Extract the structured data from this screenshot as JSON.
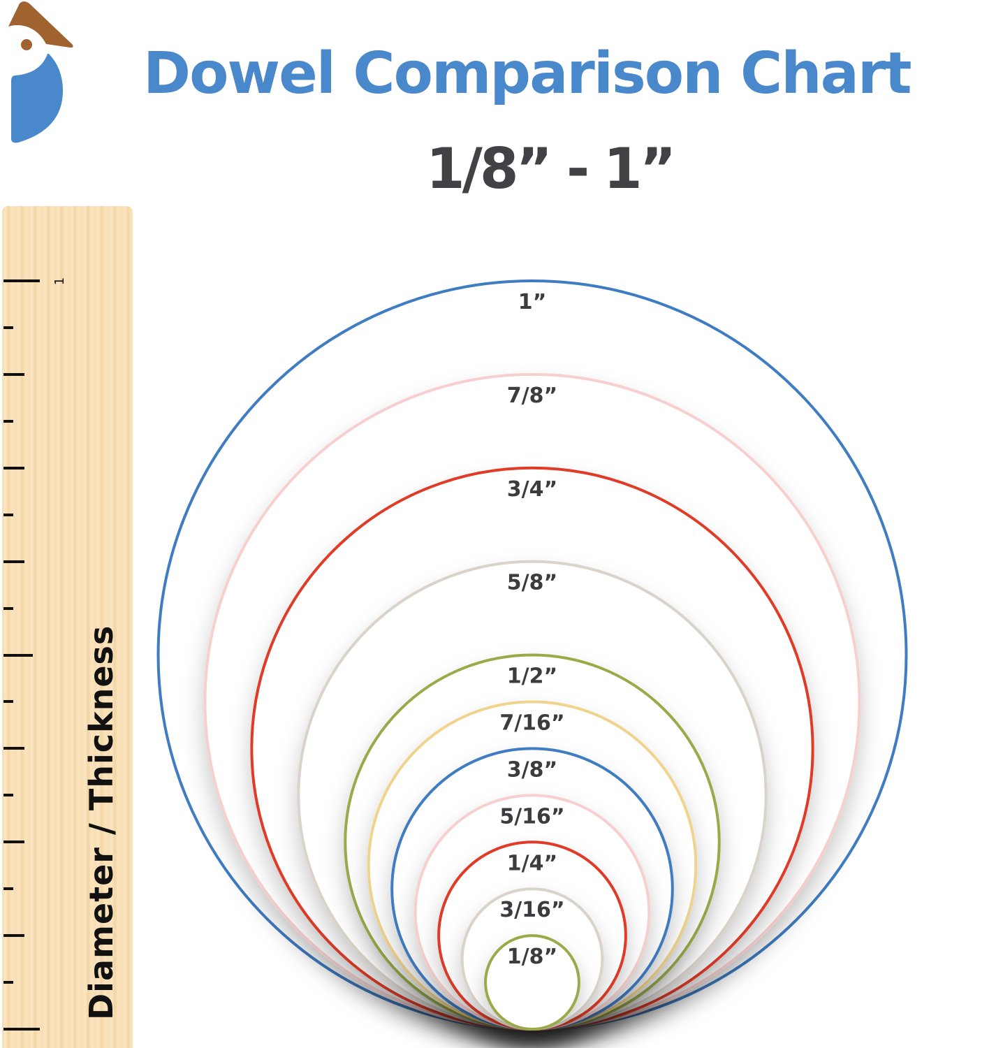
{
  "header": {
    "title": "Dowel Comparison Chart",
    "subtitle": "1/8” - 1”"
  },
  "logo": {
    "icon": "bird-logo",
    "colors": {
      "head": "#a0622f",
      "body": "#4a88cc"
    }
  },
  "ruler": {
    "label": "Diameter / Thickness",
    "top_mark": "1",
    "unit": "inch",
    "divisions": 16
  },
  "chart_data": {
    "type": "nested-circles",
    "unit": "inch",
    "circles": [
      {
        "label": "1”",
        "diameter": 1,
        "color": "#3f7cc2"
      },
      {
        "label": "7/8”",
        "diameter": 0.875,
        "color": "#f7cfcf"
      },
      {
        "label": "3/4”",
        "diameter": 0.75,
        "color": "#df3a28"
      },
      {
        "label": "5/8”",
        "diameter": 0.625,
        "color": "#d9d3ca"
      },
      {
        "label": "1/2”",
        "diameter": 0.5,
        "color": "#9ba94a"
      },
      {
        "label": "7/16”",
        "diameter": 0.4375,
        "color": "#f0d48e"
      },
      {
        "label": "3/8”",
        "diameter": 0.375,
        "color": "#3f7cc2"
      },
      {
        "label": "5/16”",
        "diameter": 0.3125,
        "color": "#f7cfcf"
      },
      {
        "label": "1/4”",
        "diameter": 0.25,
        "color": "#df3a28"
      },
      {
        "label": "3/16”",
        "diameter": 0.1875,
        "color": "#d9d3ca"
      },
      {
        "label": "1/8”",
        "diameter": 0.125,
        "color": "#9ba94a"
      }
    ]
  }
}
